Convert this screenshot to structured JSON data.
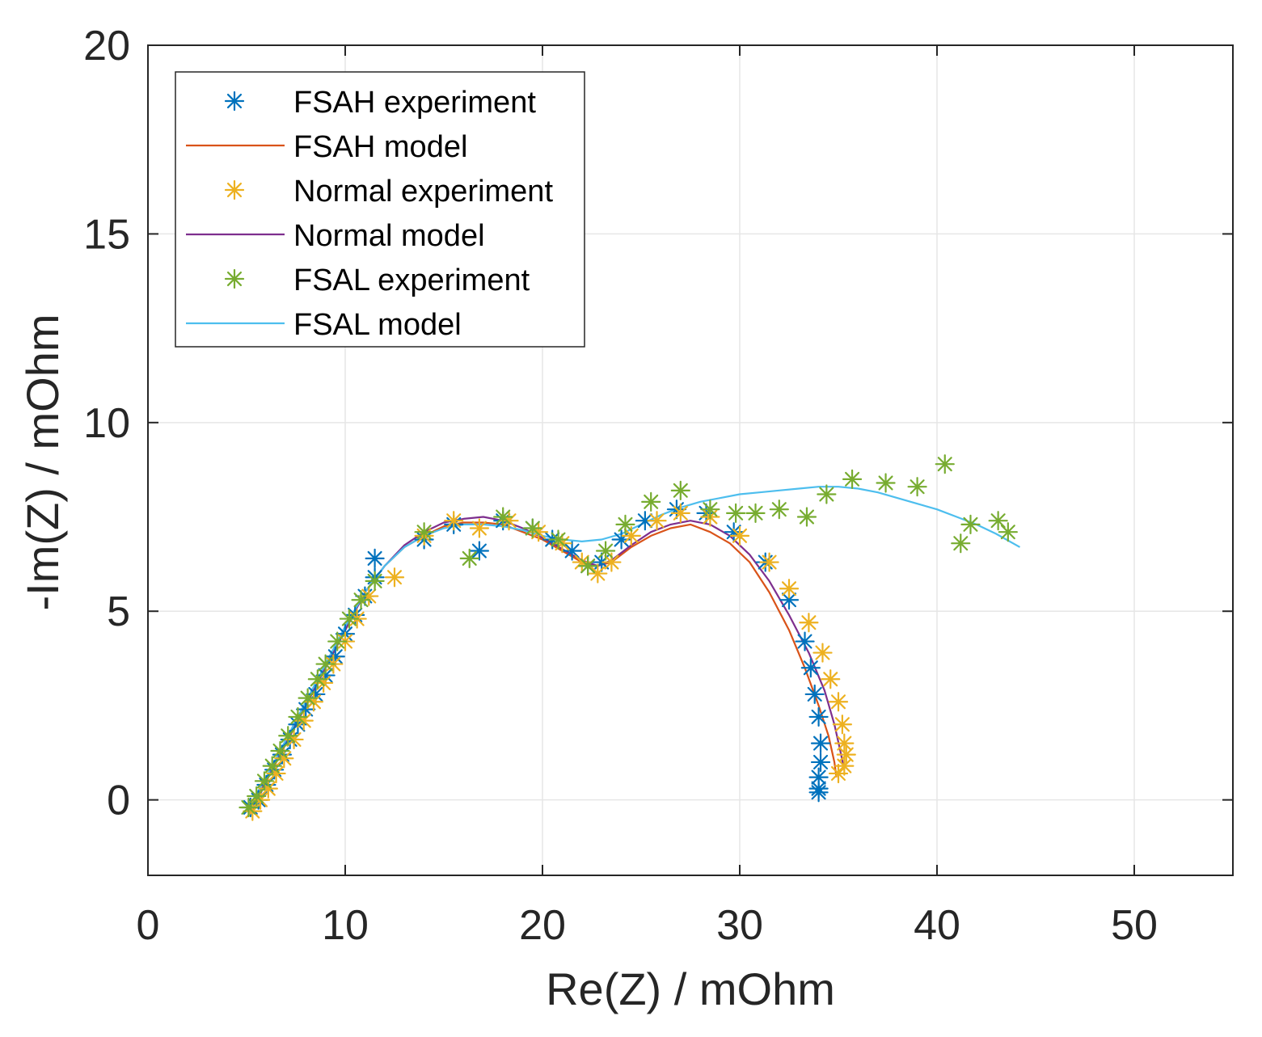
{
  "chart_data": {
    "type": "scatter",
    "xlabel": "Re(Z) / mOhm",
    "ylabel": "-Im(Z) / mOhm",
    "xlim": [
      0,
      55
    ],
    "ylim": [
      -2,
      20
    ],
    "xticks": [
      0,
      10,
      20,
      30,
      40,
      50
    ],
    "yticks": [
      0,
      5,
      10,
      15,
      20
    ],
    "grid": true,
    "legend_position": "top-left",
    "series": [
      {
        "name": "FSAH experiment",
        "kind": "markers",
        "marker": "asterisk",
        "color": "#0072BD",
        "points": [
          [
            5.2,
            -0.2
          ],
          [
            5.6,
            0.0
          ],
          [
            6.0,
            0.4
          ],
          [
            6.4,
            0.8
          ],
          [
            6.8,
            1.2
          ],
          [
            7.2,
            1.6
          ],
          [
            7.6,
            2.0
          ],
          [
            8.0,
            2.4
          ],
          [
            8.5,
            2.8
          ],
          [
            9.0,
            3.3
          ],
          [
            9.5,
            3.8
          ],
          [
            10.0,
            4.4
          ],
          [
            10.5,
            4.9
          ],
          [
            11.0,
            5.4
          ],
          [
            11.5,
            5.9
          ],
          [
            11.5,
            6.4
          ],
          [
            14.0,
            6.9
          ],
          [
            15.5,
            7.3
          ],
          [
            16.8,
            6.6
          ],
          [
            18.0,
            7.4
          ],
          [
            19.5,
            7.2
          ],
          [
            20.5,
            6.9
          ],
          [
            21.5,
            6.6
          ],
          [
            22.3,
            6.2
          ],
          [
            23.0,
            6.3
          ],
          [
            24.0,
            6.9
          ],
          [
            25.2,
            7.4
          ],
          [
            26.8,
            7.7
          ],
          [
            28.3,
            7.6
          ],
          [
            29.7,
            7.1
          ],
          [
            31.3,
            6.3
          ],
          [
            32.5,
            5.3
          ],
          [
            33.3,
            4.2
          ],
          [
            33.6,
            3.5
          ],
          [
            33.8,
            2.8
          ],
          [
            34.0,
            2.2
          ],
          [
            34.1,
            1.5
          ],
          [
            34.1,
            1.0
          ],
          [
            34.0,
            0.6
          ],
          [
            34.0,
            0.3
          ],
          [
            34.0,
            0.2
          ]
        ]
      },
      {
        "name": "FSAH model",
        "kind": "line",
        "color": "#D95319",
        "points": [
          [
            5.2,
            -0.2
          ],
          [
            6.0,
            0.5
          ],
          [
            7.0,
            1.5
          ],
          [
            8.0,
            2.5
          ],
          [
            9.0,
            3.5
          ],
          [
            10.0,
            4.5
          ],
          [
            11.0,
            5.5
          ],
          [
            12.0,
            6.2
          ],
          [
            13.0,
            6.7
          ],
          [
            14.0,
            7.0
          ],
          [
            15.0,
            7.25
          ],
          [
            16.0,
            7.35
          ],
          [
            17.0,
            7.35
          ],
          [
            18.0,
            7.3
          ],
          [
            19.0,
            7.1
          ],
          [
            20.0,
            6.9
          ],
          [
            21.0,
            6.6
          ],
          [
            22.0,
            6.3
          ],
          [
            22.8,
            6.2
          ],
          [
            23.5,
            6.3
          ],
          [
            24.5,
            6.7
          ],
          [
            25.5,
            7.0
          ],
          [
            26.5,
            7.2
          ],
          [
            27.5,
            7.3
          ],
          [
            28.5,
            7.1
          ],
          [
            29.5,
            6.8
          ],
          [
            30.5,
            6.3
          ],
          [
            31.5,
            5.5
          ],
          [
            32.5,
            4.5
          ],
          [
            33.3,
            3.5
          ],
          [
            34.0,
            2.5
          ],
          [
            34.5,
            1.7
          ],
          [
            34.8,
            1.0
          ],
          [
            34.9,
            0.6
          ]
        ]
      },
      {
        "name": "Normal experiment",
        "kind": "markers",
        "marker": "asterisk",
        "color": "#EDB120",
        "points": [
          [
            5.3,
            -0.3
          ],
          [
            5.7,
            0.0
          ],
          [
            6.1,
            0.3
          ],
          [
            6.5,
            0.7
          ],
          [
            6.9,
            1.1
          ],
          [
            7.4,
            1.6
          ],
          [
            7.9,
            2.1
          ],
          [
            8.4,
            2.6
          ],
          [
            8.9,
            3.1
          ],
          [
            9.4,
            3.6
          ],
          [
            10.0,
            4.2
          ],
          [
            10.6,
            4.8
          ],
          [
            11.2,
            5.4
          ],
          [
            12.5,
            5.9
          ],
          [
            14.0,
            7.0
          ],
          [
            15.5,
            7.4
          ],
          [
            16.8,
            7.2
          ],
          [
            18.3,
            7.4
          ],
          [
            19.8,
            7.1
          ],
          [
            21.0,
            6.8
          ],
          [
            22.0,
            6.3
          ],
          [
            22.8,
            6.0
          ],
          [
            23.5,
            6.3
          ],
          [
            24.5,
            7.0
          ],
          [
            25.8,
            7.4
          ],
          [
            27.0,
            7.6
          ],
          [
            28.5,
            7.5
          ],
          [
            30.0,
            7.0
          ],
          [
            31.5,
            6.3
          ],
          [
            32.5,
            5.6
          ],
          [
            33.5,
            4.7
          ],
          [
            34.2,
            3.9
          ],
          [
            34.6,
            3.2
          ],
          [
            35.0,
            2.6
          ],
          [
            35.2,
            2.0
          ],
          [
            35.3,
            1.5
          ],
          [
            35.4,
            1.2
          ],
          [
            35.3,
            0.9
          ],
          [
            35.0,
            0.7
          ]
        ]
      },
      {
        "name": "Normal model",
        "kind": "line",
        "color": "#7E2F8E",
        "points": [
          [
            5.3,
            -0.3
          ],
          [
            6.0,
            0.5
          ],
          [
            7.0,
            1.5
          ],
          [
            8.0,
            2.5
          ],
          [
            9.0,
            3.5
          ],
          [
            10.0,
            4.5
          ],
          [
            11.0,
            5.5
          ],
          [
            12.0,
            6.2
          ],
          [
            13.0,
            6.75
          ],
          [
            14.0,
            7.1
          ],
          [
            15.0,
            7.35
          ],
          [
            16.0,
            7.45
          ],
          [
            17.0,
            7.5
          ],
          [
            18.0,
            7.4
          ],
          [
            19.0,
            7.2
          ],
          [
            20.0,
            6.95
          ],
          [
            21.0,
            6.65
          ],
          [
            22.0,
            6.35
          ],
          [
            22.8,
            6.2
          ],
          [
            23.5,
            6.35
          ],
          [
            24.5,
            6.75
          ],
          [
            25.5,
            7.1
          ],
          [
            26.5,
            7.3
          ],
          [
            27.5,
            7.4
          ],
          [
            28.5,
            7.3
          ],
          [
            29.5,
            7.0
          ],
          [
            30.5,
            6.5
          ],
          [
            31.5,
            5.8
          ],
          [
            32.5,
            4.9
          ],
          [
            33.5,
            3.9
          ],
          [
            34.3,
            2.9
          ],
          [
            34.8,
            2.0
          ],
          [
            35.1,
            1.3
          ],
          [
            35.3,
            0.8
          ]
        ]
      },
      {
        "name": "FSAL experiment",
        "kind": "markers",
        "marker": "asterisk",
        "color": "#77AC30",
        "points": [
          [
            5.1,
            -0.2
          ],
          [
            5.5,
            0.1
          ],
          [
            5.9,
            0.5
          ],
          [
            6.3,
            0.9
          ],
          [
            6.7,
            1.3
          ],
          [
            7.1,
            1.7
          ],
          [
            7.6,
            2.2
          ],
          [
            8.1,
            2.7
          ],
          [
            8.6,
            3.2
          ],
          [
            9.0,
            3.6
          ],
          [
            9.6,
            4.2
          ],
          [
            10.2,
            4.8
          ],
          [
            10.8,
            5.3
          ],
          [
            11.5,
            5.8
          ],
          [
            14.0,
            7.1
          ],
          [
            16.3,
            6.4
          ],
          [
            18.0,
            7.5
          ],
          [
            19.5,
            7.2
          ],
          [
            20.8,
            6.9
          ],
          [
            22.3,
            6.2
          ],
          [
            23.2,
            6.6
          ],
          [
            24.2,
            7.3
          ],
          [
            25.5,
            7.9
          ],
          [
            27.0,
            8.2
          ],
          [
            28.5,
            7.7
          ],
          [
            29.8,
            7.6
          ],
          [
            30.8,
            7.6
          ],
          [
            32.0,
            7.7
          ],
          [
            33.4,
            7.5
          ],
          [
            34.4,
            8.1
          ],
          [
            35.7,
            8.5
          ],
          [
            37.4,
            8.4
          ],
          [
            39.0,
            8.3
          ],
          [
            40.4,
            8.9
          ],
          [
            41.2,
            6.8
          ],
          [
            41.7,
            7.3
          ],
          [
            43.1,
            7.4
          ],
          [
            43.6,
            7.1
          ]
        ]
      },
      {
        "name": "FSAL model",
        "kind": "line",
        "color": "#4DBEEE",
        "points": [
          [
            5.1,
            -0.2
          ],
          [
            6.0,
            0.6
          ],
          [
            7.0,
            1.6
          ],
          [
            8.0,
            2.6
          ],
          [
            9.0,
            3.6
          ],
          [
            10.0,
            4.6
          ],
          [
            11.0,
            5.5
          ],
          [
            12.0,
            6.2
          ],
          [
            13.0,
            6.7
          ],
          [
            14.0,
            7.0
          ],
          [
            15.0,
            7.2
          ],
          [
            16.0,
            7.3
          ],
          [
            17.0,
            7.3
          ],
          [
            18.0,
            7.25
          ],
          [
            19.0,
            7.15
          ],
          [
            20.0,
            7.0
          ],
          [
            21.0,
            6.9
          ],
          [
            22.0,
            6.85
          ],
          [
            23.0,
            6.9
          ],
          [
            24.0,
            7.05
          ],
          [
            25.0,
            7.3
          ],
          [
            26.0,
            7.55
          ],
          [
            27.0,
            7.75
          ],
          [
            28.0,
            7.9
          ],
          [
            29.0,
            8.0
          ],
          [
            30.0,
            8.1
          ],
          [
            31.0,
            8.15
          ],
          [
            32.0,
            8.2
          ],
          [
            33.0,
            8.25
          ],
          [
            34.0,
            8.3
          ],
          [
            35.0,
            8.3
          ],
          [
            36.0,
            8.25
          ],
          [
            37.0,
            8.15
          ],
          [
            38.0,
            8.0
          ],
          [
            39.0,
            7.85
          ],
          [
            40.0,
            7.7
          ],
          [
            41.0,
            7.5
          ],
          [
            42.0,
            7.3
          ],
          [
            43.0,
            7.05
          ],
          [
            44.2,
            6.7
          ]
        ]
      }
    ]
  }
}
